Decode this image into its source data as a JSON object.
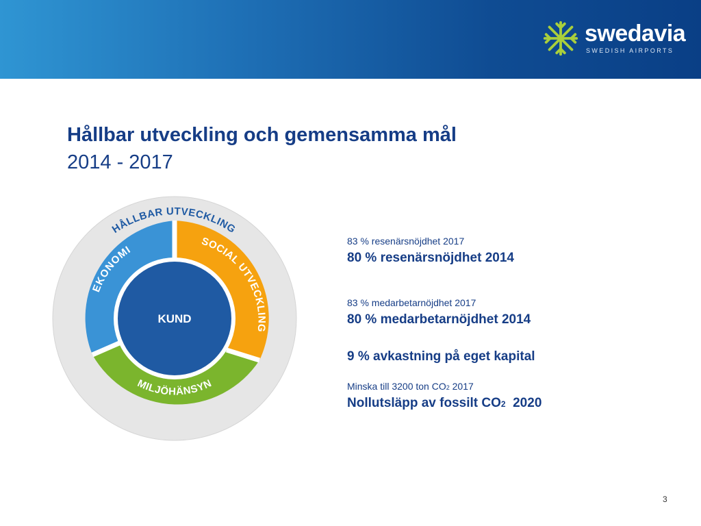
{
  "header": {
    "logo_word": "swedavia",
    "logo_sub": "SWEDISH AIRPORTS"
  },
  "title": "Hållbar utveckling och gemensamma mål",
  "subtitle": "2014 - 2017",
  "diagram": {
    "outer_label": "HÅLLBAR UTVECKLING",
    "segment_left": "EKONOMI",
    "segment_right": "SOCIAL UTVECKLING",
    "segment_bottom": "MILJÖHÄNSYN",
    "center": "KUND",
    "colors": {
      "outer_ring": "#e6e6e6",
      "ekonomi": "#3a93d6",
      "social": "#f6a20f",
      "miljo": "#7bb52d",
      "center": "#1f5aa3"
    }
  },
  "goals": [
    {
      "small": "83 % resenärsnöjdhet 2017",
      "big": "80 % resenärsnöjdhet 2014"
    },
    {
      "small": "83 % medarbetarnöjdhet 2017",
      "big": "80 % medarbetarnöjdhet 2014"
    },
    {
      "big": "9 % avkastning på eget kapital"
    },
    {
      "small_pre": "Minska till 3200 ton CO",
      "small_sub": "2",
      "small_post": " 2017",
      "big_pre": "Nollutsläpp av fossilt CO",
      "big_sub": "2",
      "big_post": "  2020"
    }
  ],
  "page_number": "3"
}
